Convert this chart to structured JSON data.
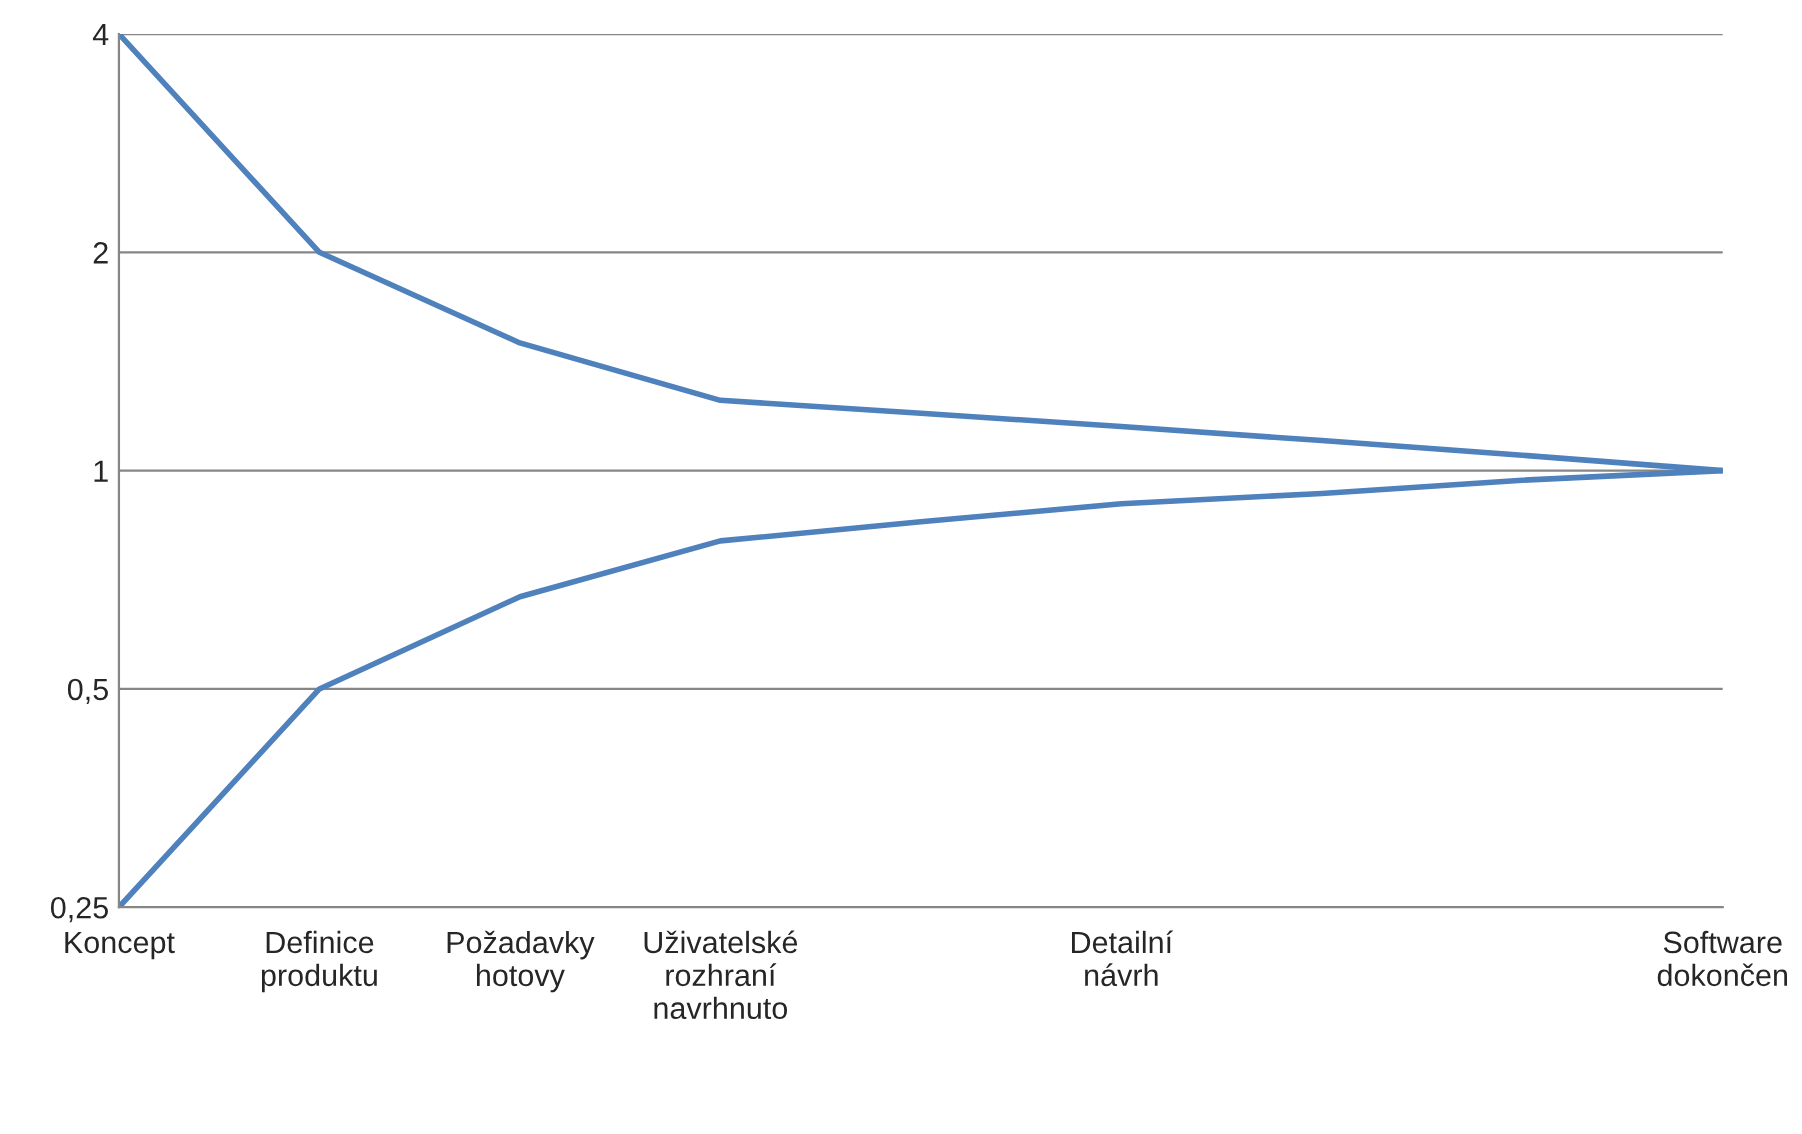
{
  "chart_data": {
    "type": "line",
    "categories": [
      "Koncept",
      "Definice\nproduktu",
      "Požadavky\nhotovy",
      "Uživatelské\nrozhraní\nnavrhnuto",
      null,
      "Detailní\nnávrh",
      null,
      null,
      "Software\ndokončen"
    ],
    "series": [
      {
        "color": "#4f81bd",
        "values": [
          4,
          2,
          1.5,
          1.25,
          1.2,
          1.15,
          1.1,
          1.05,
          1
        ]
      },
      {
        "color": "#4f81bd",
        "values": [
          0.25,
          0.5,
          0.67,
          0.8,
          0.85,
          0.9,
          0.93,
          0.97,
          1
        ]
      }
    ],
    "log": "y",
    "ylim": [
      0.25,
      4
    ],
    "yticks": [
      {
        "value": 0.25,
        "label": "0,25"
      },
      {
        "value": 0.5,
        "label": "0,5"
      },
      1,
      2,
      4
    ],
    "grid": "y",
    "legend": false,
    "marker": "none",
    "line_style": "solid"
  }
}
